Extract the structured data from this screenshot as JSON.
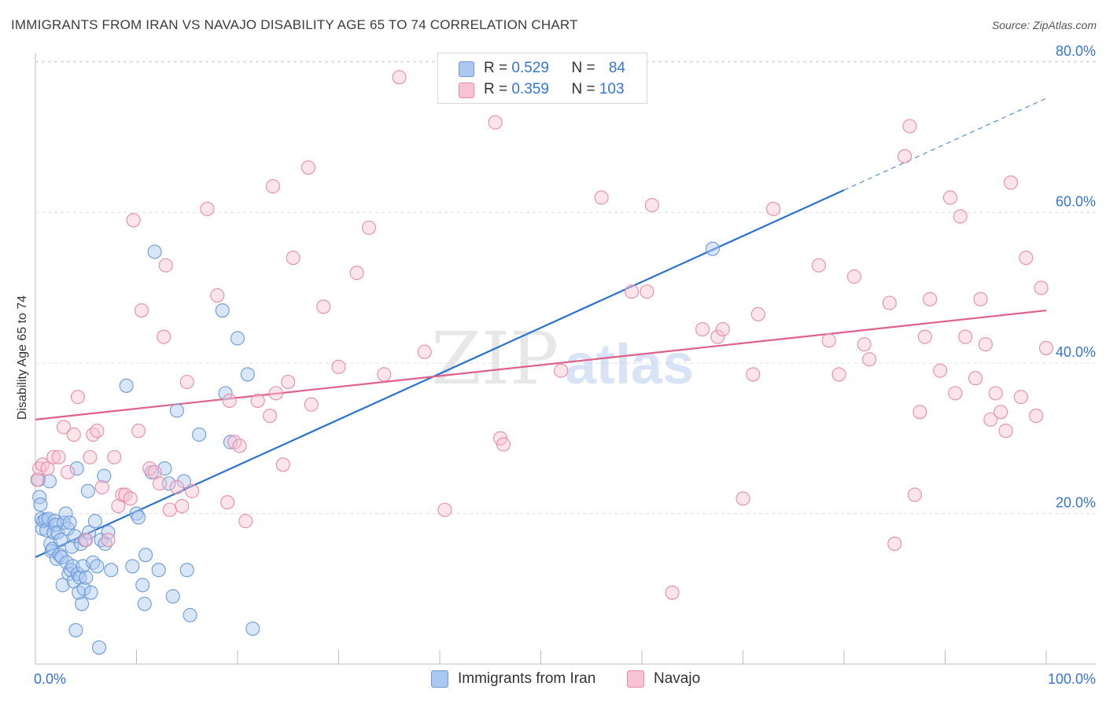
{
  "header": {
    "title": "IMMIGRANTS FROM IRAN VS NAVAJO DISABILITY AGE 65 TO 74 CORRELATION CHART",
    "source": "Source: ZipAtlas.com"
  },
  "watermark": {
    "part1": "ZIP",
    "part2": "atlas"
  },
  "legend": {
    "blue": {
      "r_label": "R = ",
      "r_value": "0.529",
      "n_label": "N = ",
      "n_value": "84",
      "color": "#aac8f0",
      "border": "#6a9ad8"
    },
    "pink": {
      "r_label": "R = ",
      "r_value": "0.359",
      "n_label": "N = ",
      "n_value": "103",
      "color": "#f9c3d3",
      "border": "#e78ca8"
    }
  },
  "bottom_legend": {
    "blue_label": "Immigrants from Iran",
    "pink_label": "Navajo"
  },
  "chart_data": {
    "type": "scatter",
    "title": "IMMIGRANTS FROM IRAN VS NAVAJO DISABILITY AGE 65 TO 74 CORRELATION CHART",
    "xlabel": "",
    "ylabel": "Disability Age 65 to 74",
    "xlim": [
      0,
      100
    ],
    "ylim": [
      0,
      82
    ],
    "x_tick_labels": [
      "0.0%",
      "100.0%"
    ],
    "y_ticks": [
      20,
      40,
      60,
      80
    ],
    "y_tick_labels": [
      "20.0%",
      "40.0%",
      "60.0%",
      "80.0%"
    ],
    "grid": true,
    "series": [
      {
        "name": "Immigrants from Iran",
        "color": "#6a9ad8",
        "fill": "#aac8f0",
        "trend": {
          "x0": 0,
          "y0": 14.2,
          "x1": 80,
          "y1": 63.0,
          "dash_to_x": 100,
          "dash_to_y": 75.2,
          "color": "#2a72d0"
        },
        "points": [
          [
            0.3,
            24.5
          ],
          [
            0.4,
            22.2
          ],
          [
            0.5,
            21.2
          ],
          [
            0.6,
            19.3
          ],
          [
            0.7,
            18.0
          ],
          [
            0.8,
            19.0
          ],
          [
            1.0,
            19.2
          ],
          [
            1.1,
            17.8
          ],
          [
            1.3,
            19.3
          ],
          [
            1.4,
            24.3
          ],
          [
            1.5,
            16.0
          ],
          [
            1.6,
            15.0
          ],
          [
            1.7,
            15.3
          ],
          [
            1.8,
            17.5
          ],
          [
            1.9,
            19.0
          ],
          [
            2.0,
            18.5
          ],
          [
            2.1,
            14.0
          ],
          [
            2.2,
            17.5
          ],
          [
            2.4,
            14.5
          ],
          [
            2.5,
            16.5
          ],
          [
            2.6,
            14.2
          ],
          [
            2.7,
            10.5
          ],
          [
            2.8,
            18.8
          ],
          [
            3.0,
            20.0
          ],
          [
            3.1,
            13.5
          ],
          [
            3.2,
            18.0
          ],
          [
            3.3,
            12.0
          ],
          [
            3.4,
            18.8
          ],
          [
            3.5,
            12.5
          ],
          [
            3.6,
            15.6
          ],
          [
            3.7,
            13.0
          ],
          [
            3.8,
            11.0
          ],
          [
            3.9,
            17.0
          ],
          [
            4.0,
            4.5
          ],
          [
            4.1,
            26.0
          ],
          [
            4.2,
            12.0
          ],
          [
            4.3,
            9.5
          ],
          [
            4.4,
            11.5
          ],
          [
            4.5,
            16.0
          ],
          [
            4.6,
            8.0
          ],
          [
            4.7,
            13.0
          ],
          [
            4.8,
            10.0
          ],
          [
            4.9,
            16.5
          ],
          [
            5.0,
            11.5
          ],
          [
            5.2,
            23.0
          ],
          [
            5.3,
            17.5
          ],
          [
            5.5,
            9.5
          ],
          [
            5.7,
            13.5
          ],
          [
            5.9,
            19.0
          ],
          [
            6.1,
            13.0
          ],
          [
            6.3,
            2.2
          ],
          [
            6.5,
            16.5
          ],
          [
            6.8,
            25.0
          ],
          [
            6.9,
            16.0
          ],
          [
            7.2,
            17.5
          ],
          [
            7.5,
            12.5
          ],
          [
            9.0,
            37.0
          ],
          [
            9.6,
            13.0
          ],
          [
            10.0,
            20.0
          ],
          [
            10.2,
            19.5
          ],
          [
            10.6,
            10.5
          ],
          [
            10.8,
            8.0
          ],
          [
            10.9,
            14.5
          ],
          [
            11.5,
            25.5
          ],
          [
            11.8,
            54.8
          ],
          [
            12.2,
            12.5
          ],
          [
            12.8,
            26.0
          ],
          [
            13.2,
            24.0
          ],
          [
            13.6,
            9.0
          ],
          [
            14.0,
            33.7
          ],
          [
            14.7,
            24.3
          ],
          [
            15.0,
            12.5
          ],
          [
            15.3,
            6.5
          ],
          [
            16.2,
            30.5
          ],
          [
            18.5,
            47.0
          ],
          [
            18.8,
            36.0
          ],
          [
            19.3,
            29.5
          ],
          [
            20.0,
            43.3
          ],
          [
            21.0,
            38.5
          ],
          [
            21.5,
            4.7
          ],
          [
            67.0,
            55.2
          ]
        ]
      },
      {
        "name": "Navajo",
        "color": "#e78ca8",
        "fill": "#f9c3d3",
        "trend": {
          "x0": 0,
          "y0": 32.5,
          "x1": 100,
          "y1": 47.0,
          "color": "#e0608a"
        },
        "points": [
          [
            0.2,
            24.5
          ],
          [
            0.4,
            26.0
          ],
          [
            0.7,
            26.5
          ],
          [
            1.2,
            26.0
          ],
          [
            1.8,
            27.5
          ],
          [
            2.3,
            27.5
          ],
          [
            2.8,
            31.5
          ],
          [
            3.2,
            25.5
          ],
          [
            3.8,
            30.5
          ],
          [
            4.2,
            35.5
          ],
          [
            5.0,
            16.5
          ],
          [
            5.4,
            27.5
          ],
          [
            5.7,
            30.5
          ],
          [
            6.1,
            31.0
          ],
          [
            6.6,
            23.5
          ],
          [
            7.2,
            16.5
          ],
          [
            7.8,
            27.5
          ],
          [
            8.2,
            21.0
          ],
          [
            8.6,
            22.5
          ],
          [
            8.9,
            22.5
          ],
          [
            9.4,
            22.0
          ],
          [
            9.7,
            59.0
          ],
          [
            10.2,
            31.0
          ],
          [
            10.5,
            47.0
          ],
          [
            11.3,
            26.0
          ],
          [
            11.8,
            25.5
          ],
          [
            12.3,
            24.0
          ],
          [
            12.7,
            43.5
          ],
          [
            12.9,
            53.0
          ],
          [
            13.3,
            20.5
          ],
          [
            14.0,
            23.5
          ],
          [
            14.5,
            21.0
          ],
          [
            15.0,
            37.5
          ],
          [
            15.5,
            23.0
          ],
          [
            17.0,
            60.5
          ],
          [
            18.0,
            49.0
          ],
          [
            19.0,
            21.5
          ],
          [
            19.2,
            35.0
          ],
          [
            19.7,
            29.5
          ],
          [
            20.2,
            29.0
          ],
          [
            20.8,
            19.0
          ],
          [
            22.0,
            35.0
          ],
          [
            23.2,
            33.0
          ],
          [
            23.5,
            63.5
          ],
          [
            23.8,
            36.0
          ],
          [
            24.5,
            26.5
          ],
          [
            25.0,
            37.5
          ],
          [
            25.5,
            54.0
          ],
          [
            27.0,
            66.0
          ],
          [
            27.3,
            34.5
          ],
          [
            28.5,
            47.5
          ],
          [
            30.0,
            39.5
          ],
          [
            31.8,
            52.0
          ],
          [
            33.0,
            58.0
          ],
          [
            34.5,
            38.5
          ],
          [
            36.0,
            78.0
          ],
          [
            38.5,
            41.5
          ],
          [
            40.5,
            20.5
          ],
          [
            45.5,
            72.0
          ],
          [
            46.0,
            30.0
          ],
          [
            46.3,
            29.2
          ],
          [
            52.0,
            39.0
          ],
          [
            56.0,
            62.0
          ],
          [
            59.0,
            49.5
          ],
          [
            60.5,
            49.5
          ],
          [
            61.0,
            61.0
          ],
          [
            63.0,
            9.5
          ],
          [
            66.0,
            44.5
          ],
          [
            67.5,
            43.5
          ],
          [
            68.0,
            44.5
          ],
          [
            70.0,
            22.0
          ],
          [
            71.0,
            38.5
          ],
          [
            71.5,
            46.5
          ],
          [
            73.0,
            60.5
          ],
          [
            77.5,
            53.0
          ],
          [
            78.5,
            43.0
          ],
          [
            79.5,
            38.5
          ],
          [
            81.0,
            51.5
          ],
          [
            82.0,
            42.5
          ],
          [
            82.5,
            40.5
          ],
          [
            84.5,
            48.0
          ],
          [
            85.0,
            16.0
          ],
          [
            86.0,
            67.5
          ],
          [
            86.5,
            71.5
          ],
          [
            87.0,
            22.5
          ],
          [
            87.5,
            33.5
          ],
          [
            88.0,
            43.5
          ],
          [
            88.5,
            48.5
          ],
          [
            89.5,
            39.0
          ],
          [
            90.5,
            62.0
          ],
          [
            91.0,
            36.0
          ],
          [
            91.5,
            59.5
          ],
          [
            92.0,
            43.5
          ],
          [
            93.0,
            38.0
          ],
          [
            93.5,
            48.5
          ],
          [
            94.0,
            42.5
          ],
          [
            94.5,
            32.5
          ],
          [
            95.0,
            36.0
          ],
          [
            95.5,
            33.5
          ],
          [
            96.0,
            31.0
          ],
          [
            96.5,
            64.0
          ],
          [
            97.5,
            35.5
          ],
          [
            98.0,
            54.0
          ],
          [
            99.0,
            33.0
          ],
          [
            99.5,
            50.0
          ],
          [
            100.0,
            42.0
          ]
        ]
      }
    ]
  }
}
